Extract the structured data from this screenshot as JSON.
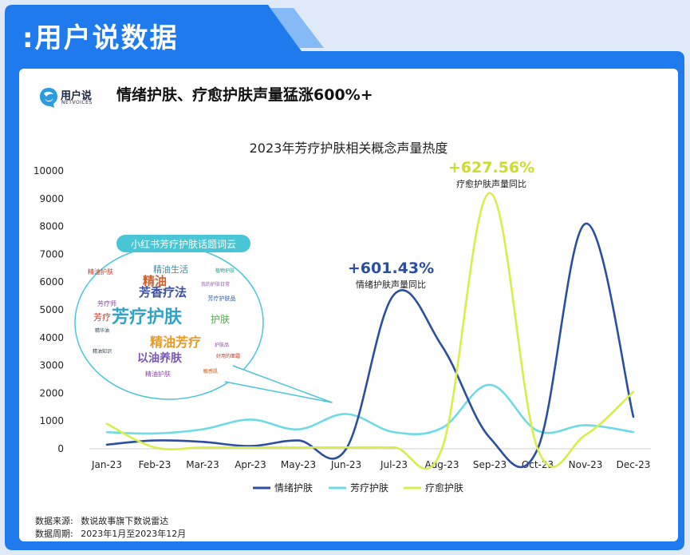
{
  "banner": {
    "title": ":用户说数据"
  },
  "brand": {
    "name": "用户说",
    "sub": "NETVOICES"
  },
  "headline": "情绪护肤、疗愈护肤声量猛涨600%+",
  "colors": {
    "banner": "#1f7aee",
    "navy": "#2b4ea3",
    "cyan": "#6ddbe6",
    "lime": "#d9ee4a",
    "bubble": "#49c6d6"
  },
  "chart_data": {
    "type": "line",
    "title": "2023年芳疗护肤相关概念声量热度",
    "categories": [
      "Jan-23",
      "Feb-23",
      "Mar-23",
      "Apr-23",
      "May-23",
      "Jun-23",
      "Jul-23",
      "Aug-23",
      "Sep-23",
      "Oct-23",
      "Nov-23",
      "Dec-23"
    ],
    "ylim": [
      0,
      10000
    ],
    "yticks": [
      0,
      1000,
      2000,
      3000,
      4000,
      5000,
      6000,
      7000,
      8000,
      9000,
      10000
    ],
    "grid": false,
    "legend_position": "bottom",
    "series": [
      {
        "name": "情绪护肤",
        "color": "#2b4ea3",
        "values": [
          150,
          300,
          250,
          100,
          300,
          0,
          5550,
          3700,
          400,
          0,
          8100,
          1150
        ]
      },
      {
        "name": "芳疗护肤",
        "color": "#6ddbe6",
        "values": [
          600,
          550,
          700,
          1050,
          700,
          1250,
          600,
          750,
          2300,
          650,
          850,
          600
        ]
      },
      {
        "name": "疗愈护肤",
        "color": "#d9ee4a",
        "values": [
          900,
          50,
          50,
          50,
          50,
          50,
          50,
          0,
          9200,
          0,
          500,
          2050
        ]
      }
    ],
    "annotations": [
      {
        "value": "+601.43%",
        "label": "情绪护肤声量同比"
      },
      {
        "value": "+627.56%",
        "label": "疗愈护肤声量同比"
      }
    ]
  },
  "wordcloud": {
    "title": "小红书芳疗护肤话题词云",
    "words": [
      {
        "text": "芳疗护肤",
        "color": "#2fa3c8",
        "size": 22
      },
      {
        "text": "精油芳疗",
        "color": "#e79a2a",
        "size": 16
      },
      {
        "text": "芳香疗法",
        "color": "#3b4fa0",
        "size": 15
      },
      {
        "text": "精油",
        "color": "#d0602b",
        "size": 15
      },
      {
        "text": "以油养肤",
        "color": "#7a56b3",
        "size": 14
      },
      {
        "text": "精油生活",
        "color": "#3a8aa8",
        "size": 11
      },
      {
        "text": "护肤",
        "color": "#5aaa55",
        "size": 12
      },
      {
        "text": "芳疗",
        "color": "#c0392b",
        "size": 11
      },
      {
        "text": "芳疗师",
        "color": "#8e44ad",
        "size": 8
      },
      {
        "text": "精油护肤",
        "color": "#c0392b",
        "size": 8
      },
      {
        "text": "我的护肤日常",
        "color": "#9b59b6",
        "size": 6
      },
      {
        "text": "芳疗护肤品",
        "color": "#2c5aa0",
        "size": 7
      },
      {
        "text": "精华油",
        "color": "#2c3e50",
        "size": 6
      },
      {
        "text": "植物护肤",
        "color": "#16a085",
        "size": 6
      },
      {
        "text": "护肤品",
        "color": "#8e44ad",
        "size": 6
      },
      {
        "text": "精油知识",
        "color": "#2c3e50",
        "size": 6
      },
      {
        "text": "好用的面霜",
        "color": "#c0392b",
        "size": 6
      },
      {
        "text": "敏感肌",
        "color": "#d35400",
        "size": 6
      },
      {
        "text": "精油护肤",
        "color": "#8e44ad",
        "size": 8
      }
    ]
  },
  "footer": {
    "source_label": "数据来源:",
    "source_value": "数说故事旗下数说雷达",
    "period_label": "数据周期:",
    "period_value": "2023年1月至2023年12月"
  }
}
